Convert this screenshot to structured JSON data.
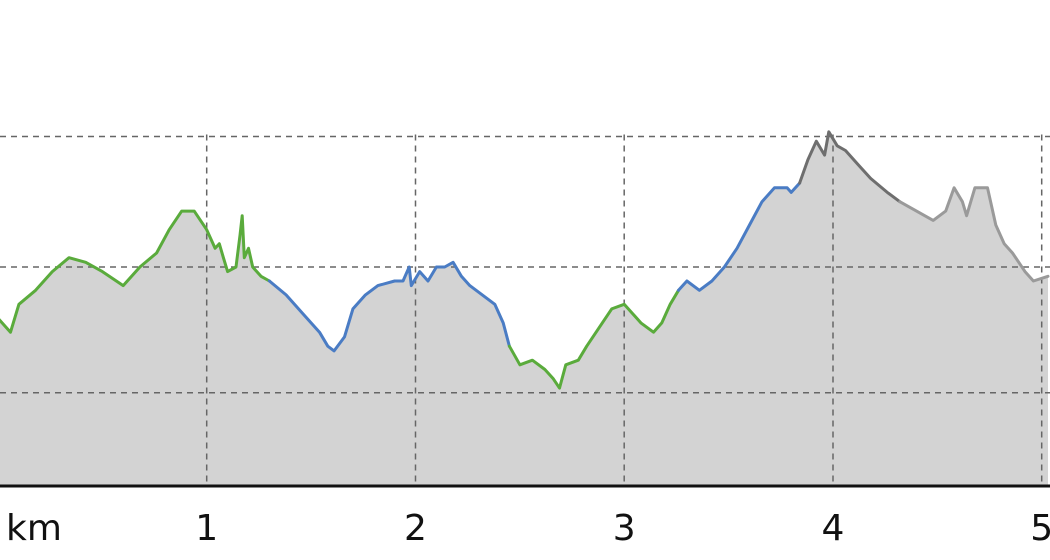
{
  "chart_data": {
    "type": "area",
    "title": "",
    "xlabel": "km",
    "ylabel": "",
    "xlim": [
      0,
      5.03
    ],
    "ylim": [
      0,
      100
    ],
    "grid": true,
    "x_ticks": [
      {
        "value": 1,
        "label": "1"
      },
      {
        "value": 2,
        "label": "2"
      },
      {
        "value": 3,
        "label": "3"
      },
      {
        "value": 4,
        "label": "4"
      },
      {
        "value": 5,
        "label": "5"
      }
    ],
    "y_gridlines": [
      20,
      47,
      75
    ],
    "fill_color": "#d3d3d3",
    "segments": [
      {
        "color": "#5aab3c",
        "points": [
          [
            0.0,
            36
          ],
          [
            0.06,
            33
          ],
          [
            0.1,
            39
          ],
          [
            0.18,
            42
          ],
          [
            0.26,
            46
          ],
          [
            0.34,
            49
          ],
          [
            0.42,
            48
          ],
          [
            0.5,
            46
          ],
          [
            0.6,
            43
          ],
          [
            0.68,
            47
          ],
          [
            0.76,
            50
          ],
          [
            0.82,
            55
          ],
          [
            0.88,
            59
          ],
          [
            0.94,
            59
          ],
          [
            1.0,
            55
          ],
          [
            1.04,
            51
          ],
          [
            1.06,
            52
          ],
          [
            1.08,
            49
          ],
          [
            1.1,
            46
          ],
          [
            1.14,
            47
          ],
          [
            1.16,
            54
          ],
          [
            1.17,
            58
          ],
          [
            1.18,
            49
          ],
          [
            1.2,
            51
          ],
          [
            1.22,
            47
          ],
          [
            1.26,
            45
          ],
          [
            1.3,
            44
          ]
        ]
      },
      {
        "color": "#4a7cc4",
        "points": [
          [
            1.3,
            44
          ],
          [
            1.38,
            41
          ],
          [
            1.46,
            37
          ],
          [
            1.54,
            33
          ],
          [
            1.58,
            30
          ],
          [
            1.61,
            29
          ],
          [
            1.66,
            32
          ],
          [
            1.7,
            38
          ],
          [
            1.76,
            41
          ],
          [
            1.82,
            43
          ],
          [
            1.9,
            44
          ],
          [
            1.94,
            44
          ],
          [
            1.97,
            47
          ],
          [
            1.98,
            43
          ],
          [
            2.02,
            46
          ],
          [
            2.06,
            44
          ],
          [
            2.1,
            47
          ],
          [
            2.14,
            47
          ],
          [
            2.18,
            48
          ],
          [
            2.22,
            45
          ],
          [
            2.26,
            43
          ],
          [
            2.32,
            41
          ],
          [
            2.38,
            39
          ],
          [
            2.42,
            35
          ],
          [
            2.45,
            30
          ]
        ]
      },
      {
        "color": "#5aab3c",
        "points": [
          [
            2.45,
            30
          ],
          [
            2.5,
            26
          ],
          [
            2.56,
            27
          ],
          [
            2.62,
            25
          ],
          [
            2.66,
            23
          ],
          [
            2.69,
            21
          ],
          [
            2.72,
            26
          ],
          [
            2.78,
            27
          ],
          [
            2.82,
            30
          ],
          [
            2.88,
            34
          ],
          [
            2.94,
            38
          ],
          [
            3.0,
            39
          ],
          [
            3.04,
            37
          ],
          [
            3.08,
            35
          ],
          [
            3.14,
            33
          ],
          [
            3.18,
            35
          ],
          [
            3.22,
            39
          ],
          [
            3.26,
            42
          ]
        ]
      },
      {
        "color": "#4a7cc4",
        "points": [
          [
            3.26,
            42
          ],
          [
            3.3,
            44
          ],
          [
            3.36,
            42
          ],
          [
            3.42,
            44
          ],
          [
            3.48,
            47
          ],
          [
            3.54,
            51
          ],
          [
            3.6,
            56
          ],
          [
            3.66,
            61
          ],
          [
            3.72,
            64
          ],
          [
            3.78,
            64
          ],
          [
            3.8,
            63
          ],
          [
            3.84,
            65
          ]
        ]
      },
      {
        "color": "#6e6e6e",
        "points": [
          [
            3.84,
            65
          ],
          [
            3.88,
            70
          ],
          [
            3.92,
            74
          ],
          [
            3.96,
            71
          ],
          [
            3.98,
            76
          ],
          [
            4.02,
            73
          ],
          [
            4.06,
            72
          ],
          [
            4.12,
            69
          ],
          [
            4.18,
            66
          ],
          [
            4.26,
            63
          ],
          [
            4.32,
            61
          ]
        ]
      },
      {
        "color": "#9a9a9a",
        "points": [
          [
            4.32,
            61
          ],
          [
            4.4,
            59
          ],
          [
            4.48,
            57
          ],
          [
            4.54,
            59
          ],
          [
            4.58,
            64
          ],
          [
            4.62,
            61
          ],
          [
            4.64,
            58
          ],
          [
            4.68,
            64
          ],
          [
            4.74,
            64
          ],
          [
            4.78,
            56
          ],
          [
            4.82,
            52
          ],
          [
            4.86,
            50
          ],
          [
            4.92,
            46
          ],
          [
            4.96,
            44
          ],
          [
            5.03,
            45
          ]
        ]
      }
    ]
  }
}
